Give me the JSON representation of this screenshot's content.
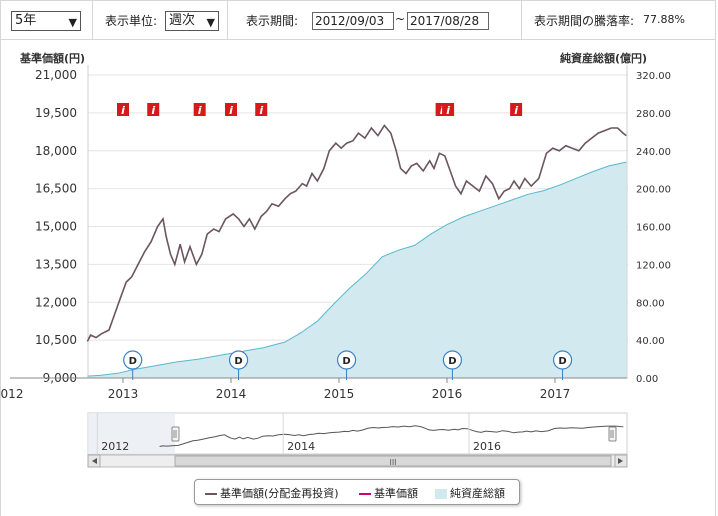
{
  "toolbar": {
    "period_select": "5年",
    "unit_label": "表示単位:",
    "unit_select": "週次",
    "range_label": "表示期間:",
    "date_from": "2012/09/03",
    "range_sep": "~",
    "date_to": "2017/08/28",
    "change_label": "表示期間の騰落率:",
    "change_value": "77.88%"
  },
  "legend": {
    "items": [
      "基準価額(分配金再投資)",
      "基準価額",
      "純資産総額"
    ],
    "colors": [
      "#6b5560",
      "#d4006a",
      "#cfe9ee"
    ]
  },
  "navigator": {
    "year_labels": [
      "2012",
      "2014",
      "2016"
    ],
    "scroll_grip": "III"
  },
  "chart_data": {
    "type": "line",
    "left_axis": {
      "label": "基準価額(円)",
      "ticks": [
        "9,000",
        "10,500",
        "12,000",
        "13,500",
        "15,000",
        "16,500",
        "18,000",
        "19,500",
        "21,000"
      ],
      "min": 9000,
      "max": 21000
    },
    "right_axis": {
      "label": "純資産総額(億円)",
      "ticks": [
        "0.00",
        "40.00",
        "80.00",
        "120.00",
        "160.00",
        "200.00",
        "240.00",
        "280.00",
        "320.00"
      ],
      "min": 0,
      "max": 320
    },
    "x_ticks": [
      "012",
      "2013",
      "2014",
      "2015",
      "2016",
      "2017"
    ],
    "x_range": [
      2012.67,
      2017.66
    ],
    "series": [
      {
        "name": "基準価額(分配金再投資)",
        "axis": "left",
        "color": "#6b5560",
        "points": [
          [
            2012.67,
            10450
          ],
          [
            2012.7,
            10700
          ],
          [
            2012.75,
            10600
          ],
          [
            2012.8,
            10750
          ],
          [
            2012.87,
            10900
          ],
          [
            2012.92,
            11500
          ],
          [
            2012.97,
            12100
          ],
          [
            2013.03,
            12800
          ],
          [
            2013.08,
            13000
          ],
          [
            2013.14,
            13500
          ],
          [
            2013.2,
            14000
          ],
          [
            2013.26,
            14400
          ],
          [
            2013.32,
            15000
          ],
          [
            2013.37,
            15300
          ],
          [
            2013.4,
            14600
          ],
          [
            2013.44,
            13900
          ],
          [
            2013.48,
            13500
          ],
          [
            2013.53,
            14300
          ],
          [
            2013.57,
            13600
          ],
          [
            2013.62,
            14200
          ],
          [
            2013.68,
            13500
          ],
          [
            2013.73,
            13900
          ],
          [
            2013.78,
            14700
          ],
          [
            2013.84,
            14900
          ],
          [
            2013.89,
            14800
          ],
          [
            2013.95,
            15300
          ],
          [
            2014.02,
            15500
          ],
          [
            2014.07,
            15300
          ],
          [
            2014.12,
            15000
          ],
          [
            2014.17,
            15300
          ],
          [
            2014.22,
            14900
          ],
          [
            2014.28,
            15400
          ],
          [
            2014.33,
            15600
          ],
          [
            2014.38,
            15900
          ],
          [
            2014.44,
            15800
          ],
          [
            2014.5,
            16100
          ],
          [
            2014.55,
            16300
          ],
          [
            2014.6,
            16400
          ],
          [
            2014.66,
            16700
          ],
          [
            2014.7,
            16600
          ],
          [
            2014.75,
            17100
          ],
          [
            2014.8,
            16800
          ],
          [
            2014.86,
            17300
          ],
          [
            2014.91,
            18000
          ],
          [
            2014.97,
            18300
          ],
          [
            2015.02,
            18100
          ],
          [
            2015.07,
            18300
          ],
          [
            2015.13,
            18400
          ],
          [
            2015.18,
            18700
          ],
          [
            2015.24,
            18500
          ],
          [
            2015.3,
            18900
          ],
          [
            2015.36,
            18600
          ],
          [
            2015.42,
            19000
          ],
          [
            2015.48,
            18700
          ],
          [
            2015.53,
            18000
          ],
          [
            2015.57,
            17300
          ],
          [
            2015.62,
            17100
          ],
          [
            2015.67,
            17400
          ],
          [
            2015.72,
            17500
          ],
          [
            2015.78,
            17200
          ],
          [
            2015.84,
            17600
          ],
          [
            2015.88,
            17300
          ],
          [
            2015.93,
            17900
          ],
          [
            2015.98,
            17800
          ],
          [
            2016.03,
            17200
          ],
          [
            2016.08,
            16600
          ],
          [
            2016.13,
            16300
          ],
          [
            2016.18,
            16800
          ],
          [
            2016.24,
            16600
          ],
          [
            2016.3,
            16400
          ],
          [
            2016.36,
            17000
          ],
          [
            2016.42,
            16700
          ],
          [
            2016.48,
            16100
          ],
          [
            2016.53,
            16400
          ],
          [
            2016.58,
            16500
          ],
          [
            2016.62,
            16800
          ],
          [
            2016.67,
            16500
          ],
          [
            2016.72,
            16900
          ],
          [
            2016.78,
            16600
          ],
          [
            2016.85,
            16900
          ],
          [
            2016.92,
            17900
          ],
          [
            2016.98,
            18100
          ],
          [
            2017.04,
            18000
          ],
          [
            2017.1,
            18200
          ],
          [
            2017.16,
            18100
          ],
          [
            2017.22,
            18000
          ],
          [
            2017.28,
            18300
          ],
          [
            2017.34,
            18500
          ],
          [
            2017.4,
            18700
          ],
          [
            2017.46,
            18800
          ],
          [
            2017.52,
            18900
          ],
          [
            2017.58,
            18900
          ],
          [
            2017.63,
            18700
          ],
          [
            2017.66,
            18600
          ]
        ]
      },
      {
        "name": "純資産総額",
        "axis": "right",
        "color": "#cfe9ee",
        "points": [
          [
            2012.67,
            2
          ],
          [
            2012.8,
            3
          ],
          [
            2012.95,
            5
          ],
          [
            2013.1,
            9
          ],
          [
            2013.3,
            13
          ],
          [
            2013.5,
            17
          ],
          [
            2013.7,
            20
          ],
          [
            2013.9,
            24
          ],
          [
            2014.1,
            28
          ],
          [
            2014.3,
            32
          ],
          [
            2014.5,
            38
          ],
          [
            2014.65,
            48
          ],
          [
            2014.8,
            60
          ],
          [
            2014.95,
            78
          ],
          [
            2015.1,
            95
          ],
          [
            2015.25,
            110
          ],
          [
            2015.4,
            128
          ],
          [
            2015.55,
            135
          ],
          [
            2015.7,
            140
          ],
          [
            2015.85,
            152
          ],
          [
            2016.0,
            162
          ],
          [
            2016.15,
            170
          ],
          [
            2016.3,
            176
          ],
          [
            2016.45,
            182
          ],
          [
            2016.6,
            188
          ],
          [
            2016.75,
            194
          ],
          [
            2016.9,
            198
          ],
          [
            2017.05,
            204
          ],
          [
            2017.2,
            211
          ],
          [
            2017.35,
            218
          ],
          [
            2017.5,
            224
          ],
          [
            2017.66,
            228
          ]
        ]
      }
    ],
    "markers": {
      "i": [
        2013.0,
        2013.28,
        2013.71,
        2014.0,
        2014.28,
        2015.95,
        2016.01,
        2016.64
      ],
      "i_text": "i",
      "d": [
        2013.09,
        2014.07,
        2015.07,
        2016.05,
        2017.07
      ],
      "d_text": "D"
    }
  }
}
